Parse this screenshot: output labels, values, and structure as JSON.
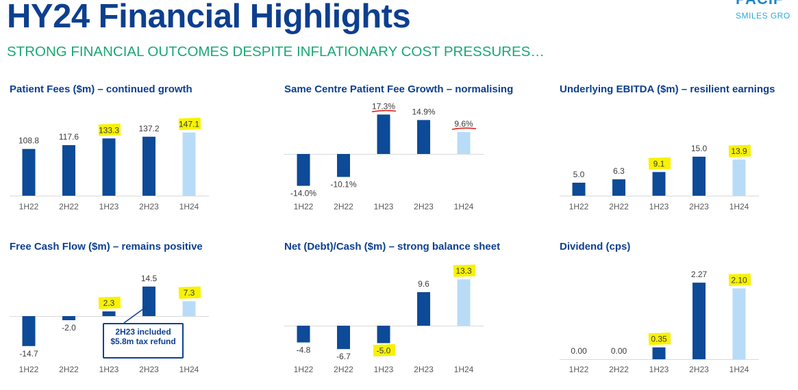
{
  "title": "HY24 Financial Highlights",
  "subtitle": "STRONG FINANCIAL OUTCOMES DESPITE INFLATIONARY COST PRESSURES…",
  "logo": {
    "top_text": "PACIF",
    "bottom_text": "SMILES GRO"
  },
  "colors": {
    "dark_bar": "#0d4a97",
    "light_bar": "#b8dcf8",
    "highlight": "#f7f200",
    "title": "#0d3f8f",
    "subtitle": "#1aa774",
    "red_mark": "#e0221c"
  },
  "callout": {
    "text": "2H23 included $5.8m tax refund"
  },
  "chart_data": [
    {
      "type": "bar",
      "title": "Patient Fees ($m) – continued growth",
      "categories": [
        "1H22",
        "2H22",
        "1H23",
        "2H23",
        "1H24"
      ],
      "values": [
        108.8,
        117.6,
        133.3,
        137.2,
        147.1
      ],
      "labels": [
        "108.8",
        "117.6",
        "133.3",
        "137.2",
        "147.1"
      ],
      "highlighted_labels": [
        2,
        4
      ]
    },
    {
      "type": "bar",
      "title": "Same Centre Patient Fee Growth – normalising",
      "categories": [
        "1H22",
        "2H22",
        "1H23",
        "2H23",
        "1H24"
      ],
      "values": [
        -14.0,
        -10.1,
        17.3,
        14.9,
        9.6
      ],
      "labels": [
        "-14.0%",
        "-10.1%",
        "17.3%",
        "14.9%",
        "9.6%"
      ],
      "underlined_labels": [
        2,
        4
      ]
    },
    {
      "type": "bar",
      "title": "Underlying EBITDA ($m) – resilient earnings",
      "categories": [
        "1H22",
        "2H22",
        "1H23",
        "2H23",
        "1H24"
      ],
      "values": [
        5.0,
        6.3,
        9.1,
        15.0,
        13.9
      ],
      "labels": [
        "5.0",
        "6.3",
        "9.1",
        "15.0",
        "13.9"
      ],
      "highlighted_labels": [
        2,
        4
      ]
    },
    {
      "type": "bar",
      "title": "Free Cash Flow ($m) – remains positive",
      "categories": [
        "1H22",
        "2H22",
        "1H23",
        "2H23",
        "1H24"
      ],
      "values": [
        -14.7,
        -2.0,
        2.3,
        14.5,
        7.3
      ],
      "labels": [
        "-14.7",
        "-2.0",
        "2.3",
        "14.5",
        "7.3"
      ],
      "highlighted_labels": [
        2,
        4
      ]
    },
    {
      "type": "bar",
      "title": "Net (Debt)/Cash ($m) – strong balance sheet",
      "categories": [
        "1H22",
        "2H22",
        "1H23",
        "2H23",
        "1H24"
      ],
      "values": [
        -4.8,
        -6.7,
        -5.0,
        9.6,
        13.3
      ],
      "labels": [
        "-4.8",
        "-6.7",
        "-5.0",
        "9.6",
        "13.3"
      ],
      "highlighted_labels": [
        2,
        4
      ]
    },
    {
      "type": "bar",
      "title": "Dividend (cps)",
      "categories": [
        "1H22",
        "2H22",
        "1H23",
        "2H23",
        "1H24"
      ],
      "values": [
        0.0,
        0.0,
        0.35,
        2.27,
        2.1
      ],
      "labels": [
        "0.00",
        "0.00",
        "0.35",
        "2.27",
        "2.10"
      ],
      "highlighted_labels": [
        2,
        4
      ]
    }
  ]
}
